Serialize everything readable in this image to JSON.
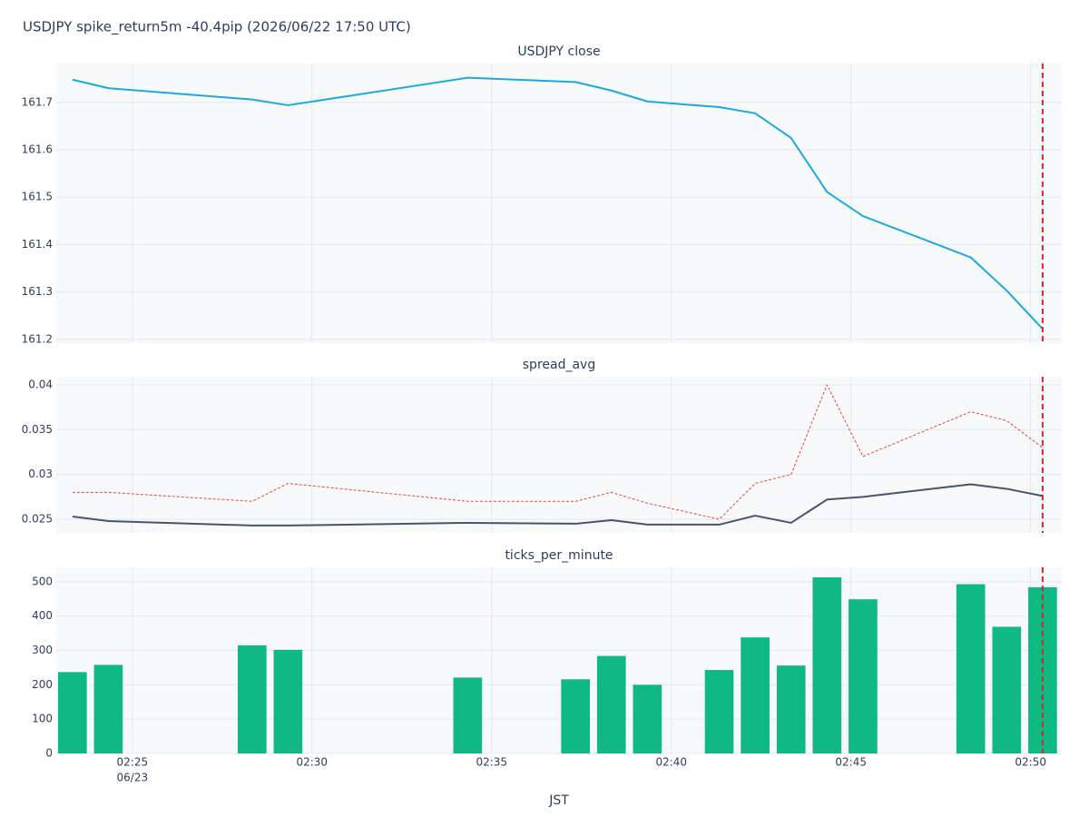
{
  "title": "USDJPY spike_return5m -40.4pip (2026/06/22 17:50 UTC)",
  "marker_x": "02:50:20",
  "chart_data": [
    {
      "type": "line",
      "title": "USDJPY close",
      "x": [
        "02:23:20",
        "02:24:20",
        "02:28:20",
        "02:29:20",
        "02:34:20",
        "02:37:20",
        "02:38:20",
        "02:39:20",
        "02:41:20",
        "02:42:20",
        "02:43:20",
        "02:44:20",
        "02:45:20",
        "02:48:20",
        "02:49:20",
        "02:50:20"
      ],
      "series": [
        {
          "color": "#1ca9e1",
          "values": [
            161.748,
            161.73,
            161.706,
            161.694,
            161.752,
            161.743,
            161.725,
            161.702,
            161.69,
            161.677,
            161.625,
            161.511,
            161.46,
            161.373,
            161.303,
            161.222
          ]
        }
      ],
      "xlim": [
        "02:22:53",
        "02:50:52"
      ],
      "ylim": [
        161.192,
        161.782
      ],
      "yticks": [
        161.2,
        161.3,
        161.4,
        161.5,
        161.6,
        161.7
      ],
      "grid": true
    },
    {
      "type": "line",
      "title": "spread_avg",
      "x": [
        "02:23:20",
        "02:24:20",
        "02:28:20",
        "02:29:20",
        "02:34:20",
        "02:37:20",
        "02:38:20",
        "02:39:20",
        "02:41:20",
        "02:42:20",
        "02:43:20",
        "02:44:20",
        "02:45:20",
        "02:48:20",
        "02:49:20",
        "02:50:20"
      ],
      "series": [
        {
          "color": "#465569",
          "dash": "solid",
          "values": [
            0.0253,
            0.0248,
            0.0243,
            0.0243,
            0.0246,
            0.0245,
            0.0249,
            0.0244,
            0.0244,
            0.0254,
            0.0246,
            0.0272,
            0.0275,
            0.0289,
            0.0284,
            0.0276
          ]
        },
        {
          "color": "#e8453c",
          "dash": "dot",
          "values": [
            0.028,
            0.028,
            0.027,
            0.029,
            0.027,
            0.027,
            0.028,
            0.0268,
            0.025,
            0.029,
            0.03,
            0.04,
            0.032,
            0.037,
            0.036,
            0.033
          ]
        }
      ],
      "xlim": [
        "02:22:53",
        "02:50:52"
      ],
      "ylim": [
        0.02348,
        0.04091
      ],
      "yticks": [
        0.025,
        0.03,
        0.035,
        0.04
      ],
      "grid": true
    },
    {
      "type": "bar",
      "title": "ticks_per_minute",
      "x": [
        "02:23:20",
        "02:24:20",
        "02:28:20",
        "02:29:20",
        "02:34:20",
        "02:37:20",
        "02:38:20",
        "02:39:20",
        "02:41:20",
        "02:42:20",
        "02:43:20",
        "02:44:20",
        "02:45:20",
        "02:48:20",
        "02:49:20",
        "02:50:20"
      ],
      "values": [
        237,
        258,
        315,
        302,
        221,
        216,
        284,
        200,
        243,
        338,
        256,
        513,
        449,
        493,
        369,
        484
      ],
      "color": "#10b981",
      "xlim": [
        "02:22:53",
        "02:50:52"
      ],
      "ylim": [
        0,
        542
      ],
      "yticks": [
        0,
        100,
        200,
        300,
        400,
        500
      ],
      "grid": true,
      "xticks": [
        {
          "value": "02:25:00",
          "label": "02:25"
        },
        {
          "value": "02:30:00",
          "label": "02:30"
        },
        {
          "value": "02:35:00",
          "label": "02:35"
        },
        {
          "value": "02:40:00",
          "label": "02:40"
        },
        {
          "value": "02:45:00",
          "label": "02:45"
        },
        {
          "value": "02:50:00",
          "label": "02:50"
        }
      ],
      "date_label": "06/23",
      "xlabel": "JST"
    }
  ]
}
